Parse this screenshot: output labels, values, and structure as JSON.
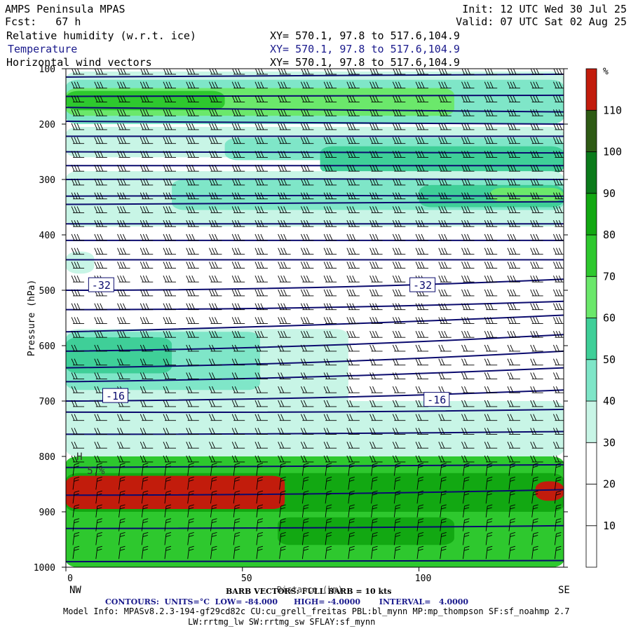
{
  "header": {
    "model": "AMPS Peninsula MPAS",
    "fcst": "Fcst:   67 h",
    "init": "Init: 12 UTC Wed 30 Jul 25",
    "valid": "Valid: 07 UTC Sat 02 Aug 25",
    "fields": [
      {
        "name": "Relative humidity (w.r.t. ice)",
        "xy": "XY= 570.1, 97.8 to 517.6,104.9"
      },
      {
        "name": "Temperature",
        "xy": "XY= 570.1, 97.8 to 517.6,104.9"
      },
      {
        "name": "Horizontal wind vectors",
        "xy": "XY= 570.1, 97.8 to 517.6,104.9"
      }
    ]
  },
  "footer": {
    "barb": "BARB VECTORS: FULL BARB = 10 kts",
    "xlabel_overlap": "Distance (km)",
    "contours": "CONTOURS:  UNITS=°C  LOW= -84.000      HIGH= -4.0000       INTERVAL=   4.0000",
    "model_info": "Model Info: MPASv8.2.3-194-gf29cd82c CU:cu_grell_freitas PBL:bl_mynn MP:mp_thompson SF:sf_noahmp 2.7",
    "model_info2": "LW:rrtmg_lw SW:rrtmg_sw SFLAY:sf_mynn"
  },
  "colors": {
    "temp_contour": "#0b0b6e",
    "rh_levels": [
      "#ffffff",
      "#ffffff",
      "#ffffff",
      "#c8f5e6",
      "#7fe6c8",
      "#3fcf98",
      "#6be86b",
      "#2ec82e",
      "#12a812",
      "#0a7a1a",
      "#2e5a14",
      "#c21c0c"
    ]
  },
  "chart_data": {
    "type": "heatmap",
    "title": "",
    "xlabel": "Distance (km)",
    "ylabel": "Pressure (hPa)",
    "xlim": [
      0,
      141
    ],
    "ylim": [
      1000,
      100
    ],
    "x_ticks": [
      0,
      50,
      100
    ],
    "y_ticks": [
      100,
      200,
      300,
      400,
      500,
      600,
      700,
      800,
      900,
      1000
    ],
    "x_end_labels": {
      "left": "NW",
      "right": "SE"
    },
    "colorbar": {
      "unit": "%",
      "ticks": [
        10,
        20,
        30,
        40,
        50,
        60,
        70,
        80,
        90,
        100,
        110
      ],
      "bounds": [
        0,
        10,
        20,
        30,
        40,
        50,
        60,
        70,
        80,
        90,
        100,
        110,
        120
      ]
    },
    "rh_bands": [
      {
        "p_top": 105,
        "p_bot": 140,
        "x0": 0,
        "x1": 141,
        "rh": 35
      },
      {
        "p_top": 120,
        "p_bot": 200,
        "x0": 0,
        "x1": 141,
        "rh": 45
      },
      {
        "p_top": 135,
        "p_bot": 185,
        "x0": 0,
        "x1": 110,
        "rh": 65
      },
      {
        "p_top": 140,
        "p_bot": 175,
        "x0": 0,
        "x1": 45,
        "rh": 72
      },
      {
        "p_top": 205,
        "p_bot": 260,
        "x0": 0,
        "x1": 141,
        "rh": 35
      },
      {
        "p_top": 225,
        "p_bot": 265,
        "x0": 45,
        "x1": 141,
        "rh": 45
      },
      {
        "p_top": 240,
        "p_bot": 290,
        "x0": 72,
        "x1": 141,
        "rh": 55
      },
      {
        "p_top": 285,
        "p_bot": 385,
        "x0": 0,
        "x1": 141,
        "rh": 35
      },
      {
        "p_top": 300,
        "p_bot": 355,
        "x0": 30,
        "x1": 141,
        "rh": 42
      },
      {
        "p_top": 310,
        "p_bot": 350,
        "x0": 100,
        "x1": 141,
        "rh": 55
      },
      {
        "p_top": 315,
        "p_bot": 340,
        "x0": 120,
        "x1": 141,
        "rh": 65
      },
      {
        "p_top": 430,
        "p_bot": 470,
        "x0": 0,
        "x1": 8,
        "rh": 35
      },
      {
        "p_top": 570,
        "p_bot": 720,
        "x0": 0,
        "x1": 80,
        "rh": 35
      },
      {
        "p_top": 575,
        "p_bot": 680,
        "x0": 0,
        "x1": 55,
        "rh": 45
      },
      {
        "p_top": 585,
        "p_bot": 650,
        "x0": 0,
        "x1": 30,
        "rh": 55
      },
      {
        "p_top": 700,
        "p_bot": 800,
        "x0": 0,
        "x1": 141,
        "rh": 35
      },
      {
        "p_top": 800,
        "p_bot": 1000,
        "x0": 0,
        "x1": 141,
        "rh": 75
      },
      {
        "p_top": 830,
        "p_bot": 900,
        "x0": 0,
        "x1": 141,
        "rh": 85
      },
      {
        "p_top": 835,
        "p_bot": 895,
        "x0": 0,
        "x1": 62,
        "rh": 115
      },
      {
        "p_top": 845,
        "p_bot": 880,
        "x0": 133,
        "x1": 141,
        "rh": 115
      },
      {
        "p_top": 900,
        "p_bot": 1000,
        "x0": 0,
        "x1": 141,
        "rh": 72
      },
      {
        "p_top": 910,
        "p_bot": 960,
        "x0": 60,
        "x1": 110,
        "rh": 82
      },
      {
        "p_top": 960,
        "p_bot": 1000,
        "x0": 0,
        "x1": 141,
        "rh": 78
      }
    ],
    "temperature_contours": [
      {
        "t": -60,
        "p": [
          115,
          112,
          110
        ]
      },
      {
        "t": -56,
        "p": [
          150,
          150,
          148
        ]
      },
      {
        "t": -52,
        "p": [
          170,
          172,
          178
        ]
      },
      {
        "t": -48,
        "p": [
          195,
          198,
          200
        ]
      },
      {
        "t": -48,
        "p": [
          222,
          222,
          222
        ]
      },
      {
        "t": -48,
        "p": [
          250,
          250,
          252
        ]
      },
      {
        "t": -44,
        "p": [
          275,
          275,
          275
        ]
      },
      {
        "t": -44,
        "p": [
          300,
          298,
          300
        ]
      },
      {
        "t": -40,
        "p": [
          330,
          328,
          330
        ]
      },
      {
        "t": -40,
        "p": [
          345,
          342,
          340
        ]
      },
      {
        "t": -36,
        "p": [
          380,
          380,
          380
        ]
      },
      {
        "t": -36,
        "p": [
          410,
          410,
          410
        ]
      },
      {
        "t": -32,
        "p": [
          445,
          445,
          445
        ]
      },
      {
        "t": -32,
        "p": [
          500,
          500,
          480
        ]
      },
      {
        "t": -28,
        "p": [
          535,
          535,
          520
        ]
      },
      {
        "t": -28,
        "p": [
          575,
          565,
          545
        ]
      },
      {
        "t": -24,
        "p": [
          610,
          605,
          580
        ]
      },
      {
        "t": -24,
        "p": [
          640,
          635,
          610
        ]
      },
      {
        "t": -20,
        "p": [
          665,
          660,
          640
        ]
      },
      {
        "t": -16,
        "p": [
          700,
          698,
          680
        ]
      },
      {
        "t": -16,
        "p": [
          720,
          722,
          715
        ]
      },
      {
        "t": -12,
        "p": [
          760,
          760,
          755
        ]
      },
      {
        "t": -12,
        "p": [
          820,
          818,
          815
        ]
      },
      {
        "t": -8,
        "p": [
          870,
          870,
          860
        ]
      },
      {
        "t": -8,
        "p": [
          930,
          930,
          925
        ]
      },
      {
        "t": -4,
        "p": [
          990,
          990,
          988
        ]
      }
    ],
    "contour_labels": [
      {
        "text": "-32",
        "x": 10,
        "p": 490
      },
      {
        "text": "-32",
        "x": 101,
        "p": 490
      },
      {
        "text": "-16",
        "x": 14,
        "p": 690
      },
      {
        "text": "-16",
        "x": 105,
        "p": 697
      }
    ],
    "extrema_labels": [
      {
        "text": "H",
        "x": 3,
        "p": 800
      },
      {
        "text": "5.%",
        "x": 6,
        "p": 825
      }
    ],
    "wind_barbs": {
      "x_spacing_km": 6.5,
      "pressure_levels": [
        110,
        135,
        160,
        185,
        210,
        235,
        260,
        285,
        310,
        335,
        360,
        385,
        410,
        435,
        460,
        485,
        510,
        535,
        560,
        585,
        610,
        635,
        660,
        685,
        710,
        735,
        760,
        785,
        810,
        835,
        860,
        885,
        910,
        935,
        960,
        985
      ],
      "full_barbs_upper": 3,
      "full_barbs_lower": 1
    }
  }
}
